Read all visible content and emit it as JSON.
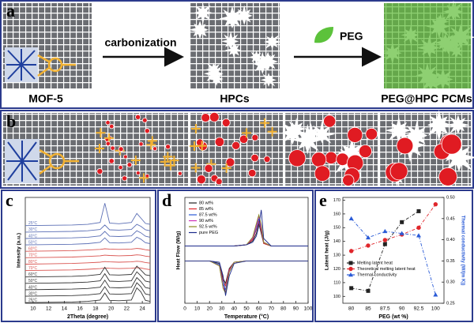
{
  "panel_a": {
    "label": "a",
    "arrow1": "carbonization",
    "arrow2": "PEG",
    "items": [
      "MOF-5",
      "HPCs",
      "PEG@HPC PCMs"
    ]
  },
  "panel_b": {
    "label": "b"
  },
  "chart_data": [
    {
      "type": "line",
      "panel": "c",
      "xlabel": "2Theta (degree)",
      "ylabel": "Intensity (a.u.)",
      "x": [
        9,
        12,
        15,
        17,
        18.6,
        19.2,
        19.8,
        21,
        22.6,
        23.3,
        23.8,
        24.4,
        25
      ],
      "xlim": [
        9,
        25
      ],
      "xticks": [
        10,
        12,
        14,
        16,
        18,
        20,
        22,
        24
      ],
      "ylim": [
        0,
        16.5
      ],
      "series_labels": true,
      "series": [
        {
          "name": "25°C",
          "color": "#5b6fb5",
          "values": [
            12.1,
            12.15,
            12.2,
            12.3,
            12.6,
            15.6,
            12.5,
            12.4,
            12.6,
            14.0,
            13.3,
            12.45,
            12.3
          ]
        },
        {
          "name": "30°C",
          "color": "#5b6fb5",
          "values": [
            11.1,
            11.15,
            11.2,
            11.3,
            11.5,
            12.2,
            11.45,
            11.4,
            11.5,
            12.3,
            12.0,
            11.45,
            11.3
          ]
        },
        {
          "name": "40°C",
          "color": "#5b6fb5",
          "values": [
            10.1,
            10.15,
            10.2,
            10.3,
            10.5,
            11.2,
            10.45,
            10.4,
            10.5,
            11.3,
            11.0,
            10.45,
            10.3
          ]
        },
        {
          "name": "50°C",
          "color": "#5b6fb5",
          "values": [
            9.1,
            9.15,
            9.2,
            9.3,
            9.5,
            10.2,
            9.45,
            9.4,
            9.5,
            10.3,
            10.0,
            9.45,
            9.3
          ]
        },
        {
          "name": "60°C",
          "color": "#d9534f",
          "values": [
            8.1,
            8.15,
            8.2,
            8.3,
            8.4,
            8.5,
            8.45,
            8.4,
            8.45,
            8.55,
            8.5,
            8.35,
            8.25
          ]
        },
        {
          "name": "70°C",
          "color": "#d9534f",
          "values": [
            7.1,
            7.15,
            7.2,
            7.3,
            7.4,
            7.5,
            7.45,
            7.4,
            7.45,
            7.55,
            7.5,
            7.35,
            7.25
          ]
        },
        {
          "name": "80°C",
          "color": "#d9534f",
          "values": [
            6.1,
            6.15,
            6.2,
            6.3,
            6.4,
            6.5,
            6.45,
            6.4,
            6.45,
            6.55,
            6.5,
            6.35,
            6.25
          ]
        },
        {
          "name": "70°C",
          "color": "#d9534f",
          "values": [
            5.1,
            5.15,
            5.2,
            5.3,
            5.4,
            5.5,
            5.45,
            5.4,
            5.45,
            5.55,
            5.5,
            5.35,
            5.25
          ]
        },
        {
          "name": "60°C",
          "color": "#333333",
          "values": [
            4.1,
            4.15,
            4.2,
            4.3,
            4.5,
            5.6,
            4.45,
            4.4,
            4.5,
            5.8,
            5.2,
            4.45,
            4.3
          ]
        },
        {
          "name": "50°C",
          "color": "#333333",
          "values": [
            3.1,
            3.15,
            3.2,
            3.3,
            3.5,
            4.6,
            3.45,
            3.4,
            3.5,
            4.9,
            4.3,
            3.45,
            3.3
          ]
        },
        {
          "name": "40°C",
          "color": "#333333",
          "values": [
            2.1,
            2.15,
            2.2,
            2.3,
            2.5,
            3.6,
            2.45,
            2.4,
            2.5,
            4.0,
            3.4,
            2.45,
            2.3
          ]
        },
        {
          "name": "30°C",
          "color": "#333333",
          "values": [
            1.1,
            1.15,
            1.2,
            1.3,
            1.5,
            2.6,
            1.45,
            1.4,
            1.5,
            3.2,
            2.6,
            1.45,
            1.3
          ]
        },
        {
          "name": "25°C",
          "color": "#333333",
          "values": [
            0.1,
            0.15,
            0.2,
            0.3,
            0.5,
            1.6,
            0.45,
            0.4,
            0.5,
            2.4,
            1.8,
            0.45,
            0.3
          ]
        }
      ]
    },
    {
      "type": "line",
      "panel": "d",
      "xlabel": "Temperature (°C)",
      "ylabel": "Heat Flow (W/g)",
      "x": [
        0,
        10,
        20,
        28,
        31,
        33,
        36,
        40,
        50,
        55,
        58,
        60,
        62,
        64,
        70,
        80,
        100
      ],
      "xlim": [
        0,
        100
      ],
      "xticks": [
        0,
        10,
        20,
        30,
        40,
        50,
        60,
        70,
        80,
        90,
        100
      ],
      "ylim": [
        -4,
        4.5
      ],
      "legend": "upper left",
      "series": [
        {
          "name": "80 wt%",
          "color": "#222222",
          "values": [
            0.6,
            0.6,
            0.6,
            0.6,
            0.6,
            0.6,
            0.6,
            0.6,
            0.7,
            1.0,
            1.6,
            2.4,
            1.6,
            0.8,
            0.6,
            0.6,
            0.6
          ],
          "cooling_values": [
            -0.6,
            -0.6,
            -0.6,
            -0.8,
            -2.0,
            -2.4,
            -1.2,
            -0.7,
            -0.6,
            -0.6,
            -0.6,
            -0.6,
            -0.6,
            -0.6,
            -0.6,
            -0.6,
            -0.6
          ]
        },
        {
          "name": "85 wt%",
          "color": "#e0262b",
          "values": [
            0.6,
            0.6,
            0.6,
            0.6,
            0.6,
            0.6,
            0.6,
            0.6,
            0.7,
            1.1,
            1.9,
            2.6,
            1.8,
            0.8,
            0.6,
            0.6,
            0.6
          ],
          "cooling_values": [
            -0.6,
            -0.6,
            -0.6,
            -0.9,
            -2.2,
            -2.6,
            -1.3,
            -0.7,
            -0.6,
            -0.6,
            -0.6,
            -0.6,
            -0.6,
            -0.6,
            -0.6,
            -0.6,
            -0.6
          ]
        },
        {
          "name": "87.5 wt%",
          "color": "#2a5bd7",
          "values": [
            0.6,
            0.6,
            0.6,
            0.6,
            0.6,
            0.6,
            0.6,
            0.6,
            0.7,
            1.2,
            2.0,
            2.8,
            2.0,
            0.9,
            0.6,
            0.6,
            0.6
          ],
          "cooling_values": [
            -0.6,
            -0.6,
            -0.6,
            -0.9,
            -2.5,
            -2.9,
            -1.4,
            -0.7,
            -0.6,
            -0.6,
            -0.6,
            -0.6,
            -0.6,
            -0.6,
            -0.6,
            -0.6,
            -0.6
          ]
        },
        {
          "name": "90 wt%",
          "color": "#cc2fb5",
          "values": [
            0.6,
            0.6,
            0.6,
            0.6,
            0.6,
            0.6,
            0.6,
            0.6,
            0.7,
            1.2,
            2.2,
            3.0,
            2.1,
            0.9,
            0.6,
            0.6,
            0.6
          ],
          "cooling_values": [
            -0.6,
            -0.6,
            -0.6,
            -1.0,
            -2.7,
            -3.1,
            -1.4,
            -0.7,
            -0.6,
            -0.6,
            -0.6,
            -0.6,
            -0.6,
            -0.6,
            -0.6,
            -0.6,
            -0.6
          ]
        },
        {
          "name": "92.5 wt%",
          "color": "#8a8a1e",
          "values": [
            0.6,
            0.6,
            0.6,
            0.6,
            0.6,
            0.6,
            0.6,
            0.6,
            0.7,
            1.3,
            2.4,
            3.1,
            2.3,
            0.9,
            0.6,
            0.6,
            0.6
          ],
          "cooling_values": [
            -0.6,
            -0.6,
            -0.6,
            -1.0,
            -2.8,
            -3.2,
            -1.5,
            -0.7,
            -0.6,
            -0.6,
            -0.6,
            -0.6,
            -0.6,
            -0.6,
            -0.6,
            -0.6,
            -0.6
          ]
        },
        {
          "name": "pure PEG",
          "color": "#1c2a8c",
          "values": [
            0.6,
            0.6,
            0.6,
            0.6,
            0.6,
            0.6,
            0.6,
            0.6,
            0.7,
            0.9,
            1.4,
            2.2,
            3.5,
            1.2,
            0.6,
            0.6,
            0.6
          ],
          "cooling_values": [
            -0.6,
            -0.6,
            -0.6,
            -0.7,
            -1.8,
            -3.4,
            -1.8,
            -0.8,
            -0.6,
            -0.6,
            -0.6,
            -0.6,
            -0.6,
            -0.6,
            -0.6,
            -0.6,
            -0.6
          ]
        }
      ]
    },
    {
      "type": "line",
      "panel": "e",
      "xlabel": "PEG (wt %)",
      "ylabel": "Latent heat (J/g)",
      "y2label": "Thermal conductivity (W/(m K))",
      "categories": [
        "80",
        "85",
        "87.5",
        "90",
        "92.5",
        "100"
      ],
      "ylim": [
        95,
        172
      ],
      "yticks": [
        100,
        110,
        120,
        130,
        140,
        150,
        160,
        170
      ],
      "y2lim": [
        0.25,
        0.5
      ],
      "y2ticks": [
        0.25,
        {
          "value": 0.3,
          "label": "0.30"
        },
        0.35,
        {
          "value": 0.4,
          "label": "0.40"
        },
        0.45,
        {
          "value": 0.5,
          "label": "0.50"
        }
      ],
      "legend": "lower left",
      "series": [
        {
          "name": "Melting latent heat",
          "color": "#222222",
          "marker": "square",
          "values": [
            106,
            104,
            138,
            154,
            162,
            null
          ]
        },
        {
          "name": "Theoretical melting latent heat",
          "color": "#e0262b",
          "marker": "circle",
          "values": [
            133,
            137,
            141,
            145,
            150,
            167
          ]
        },
        {
          "name": "Thermal conductivity",
          "color": "#2a5bd7",
          "marker": "triangle",
          "axis": "y2",
          "values": [
            0.45,
            0.405,
            0.42,
            0.415,
            0.41,
            0.27
          ]
        }
      ]
    }
  ]
}
